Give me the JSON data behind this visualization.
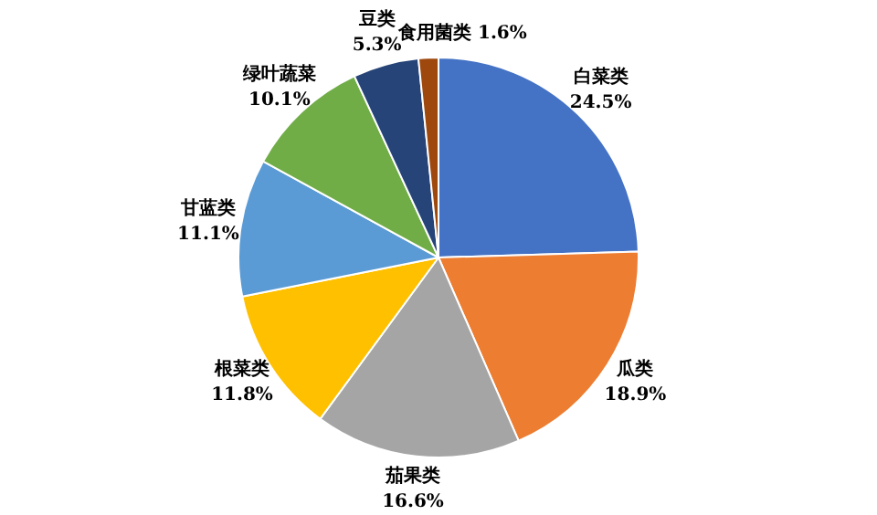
{
  "chart_data": {
    "type": "pie",
    "categories": [
      "白菜类",
      "瓜类",
      "茄果类",
      "根菜类",
      "甘蓝类",
      "绿叶蔬菜",
      "豆类",
      "食用菌类"
    ],
    "values": [
      24.5,
      18.9,
      16.6,
      11.8,
      11.1,
      10.1,
      5.3,
      1.6
    ],
    "value_labels": [
      "24.5%",
      "18.9%",
      "16.6%",
      "11.8%",
      "11.1%",
      "10.1%",
      "5.3%",
      "1.6%"
    ],
    "colors": [
      "#4472c4",
      "#ed7d31",
      "#a5a5a5",
      "#ffc000",
      "#5b9bd5",
      "#70ad47",
      "#264478",
      "#9e480e"
    ],
    "legend": false
  }
}
